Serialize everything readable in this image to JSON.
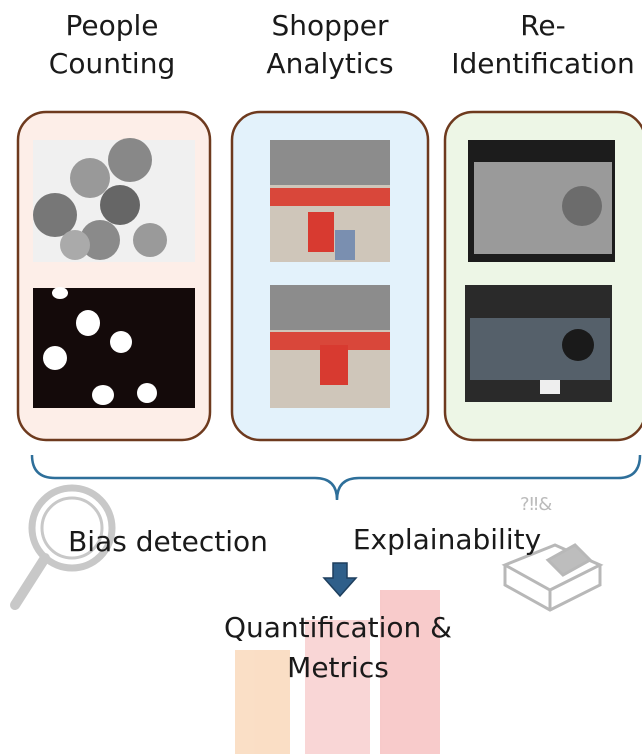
{
  "columns": [
    {
      "title_lines": [
        "People",
        "Counting"
      ]
    },
    {
      "title_lines": [
        "Shopper",
        "Analytics"
      ]
    },
    {
      "title_lines": [
        "Re-",
        "Identification"
      ]
    }
  ],
  "labels": {
    "bias": "Bias detection",
    "explain": "Explainability",
    "quant_lines": [
      "Quantification &",
      "Metrics"
    ]
  }
}
